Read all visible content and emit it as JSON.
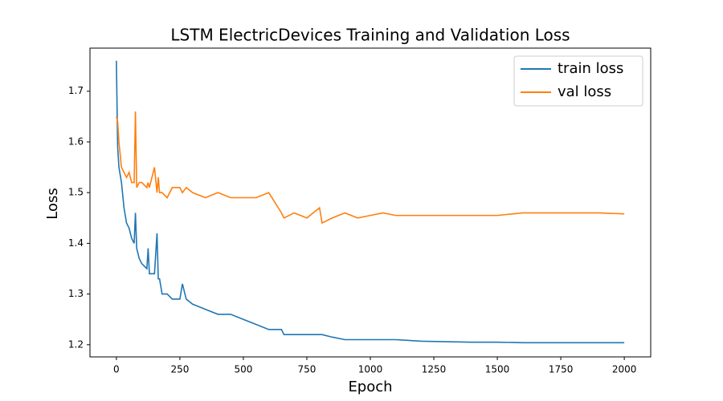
{
  "chart_data": {
    "type": "line",
    "title": "LSTM ElectricDevices Training and Validation Loss",
    "x_label": "Epoch",
    "y_label": "Loss",
    "x": [
      0,
      5,
      10,
      20,
      30,
      40,
      50,
      60,
      70,
      75,
      80,
      90,
      100,
      120,
      125,
      130,
      150,
      160,
      165,
      170,
      180,
      200,
      220,
      250,
      260,
      275,
      300,
      350,
      400,
      450,
      500,
      550,
      600,
      650,
      660,
      700,
      750,
      800,
      810,
      850,
      900,
      950,
      1000,
      1050,
      1100,
      1200,
      1300,
      1400,
      1500,
      1600,
      1700,
      1800,
      1900,
      2000
    ],
    "series": [
      {
        "name": "train loss",
        "color": "#1f77b4",
        "values": [
          1.76,
          1.59,
          1.55,
          1.52,
          1.47,
          1.44,
          1.43,
          1.41,
          1.4,
          1.46,
          1.39,
          1.37,
          1.36,
          1.35,
          1.39,
          1.34,
          1.34,
          1.42,
          1.33,
          1.33,
          1.3,
          1.3,
          1.29,
          1.29,
          1.32,
          1.29,
          1.28,
          1.27,
          1.26,
          1.26,
          1.25,
          1.24,
          1.23,
          1.23,
          1.22,
          1.22,
          1.22,
          1.22,
          1.22,
          1.215,
          1.21,
          1.21,
          1.21,
          1.21,
          1.21,
          1.207,
          1.206,
          1.205,
          1.205,
          1.204,
          1.204,
          1.204,
          1.204,
          1.204
        ]
      },
      {
        "name": "val loss",
        "color": "#ff7f0e",
        "values": [
          1.65,
          1.64,
          1.6,
          1.55,
          1.54,
          1.53,
          1.54,
          1.52,
          1.52,
          1.66,
          1.51,
          1.52,
          1.52,
          1.51,
          1.52,
          1.51,
          1.55,
          1.5,
          1.53,
          1.5,
          1.5,
          1.49,
          1.51,
          1.51,
          1.5,
          1.51,
          1.5,
          1.49,
          1.5,
          1.49,
          1.49,
          1.49,
          1.5,
          1.46,
          1.45,
          1.46,
          1.45,
          1.47,
          1.44,
          1.45,
          1.46,
          1.45,
          1.455,
          1.46,
          1.455,
          1.455,
          1.455,
          1.455,
          1.455,
          1.46,
          1.46,
          1.46,
          1.46,
          1.458
        ]
      }
    ],
    "xlim": [
      -104,
      2104
    ],
    "ylim": [
      1.176,
      1.785
    ],
    "xticks": [
      0,
      250,
      500,
      750,
      1000,
      1250,
      1500,
      1750,
      2000
    ],
    "yticks": [
      1.2,
      1.3,
      1.4,
      1.5,
      1.6,
      1.7
    ],
    "legend": "upper right"
  }
}
